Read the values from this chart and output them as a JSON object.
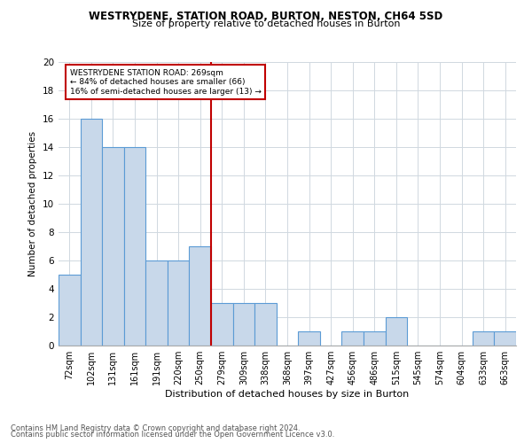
{
  "title1": "WESTRYDENE, STATION ROAD, BURTON, NESTON, CH64 5SD",
  "title2": "Size of property relative to detached houses in Burton",
  "xlabel": "Distribution of detached houses by size in Burton",
  "ylabel": "Number of detached properties",
  "categories": [
    "72sqm",
    "102sqm",
    "131sqm",
    "161sqm",
    "191sqm",
    "220sqm",
    "250sqm",
    "279sqm",
    "309sqm",
    "338sqm",
    "368sqm",
    "397sqm",
    "427sqm",
    "456sqm",
    "486sqm",
    "515sqm",
    "545sqm",
    "574sqm",
    "604sqm",
    "633sqm",
    "663sqm"
  ],
  "values": [
    5,
    16,
    14,
    14,
    6,
    6,
    7,
    3,
    3,
    3,
    0,
    1,
    0,
    1,
    1,
    2,
    0,
    0,
    0,
    1,
    1
  ],
  "bar_color": "#c8d8ea",
  "bar_edge_color": "#5b9bd5",
  "grid_color": "#d0d8e0",
  "vline_index": 7,
  "vline_color": "#c00000",
  "annotation_box_color": "#ffffff",
  "annotation_box_edge": "#c00000",
  "annotation_text": "WESTRYDENE STATION ROAD: 269sqm\n← 84% of detached houses are smaller (66)\n16% of semi-detached houses are larger (13) →",
  "annotation_fontsize": 6.5,
  "footer1": "Contains HM Land Registry data © Crown copyright and database right 2024.",
  "footer2": "Contains public sector information licensed under the Open Government Licence v3.0.",
  "ylim": [
    0,
    20
  ],
  "yticks": [
    0,
    2,
    4,
    6,
    8,
    10,
    12,
    14,
    16,
    18,
    20
  ],
  "title1_fontsize": 8.5,
  "title2_fontsize": 8.0,
  "xlabel_fontsize": 8.0,
  "ylabel_fontsize": 7.5
}
